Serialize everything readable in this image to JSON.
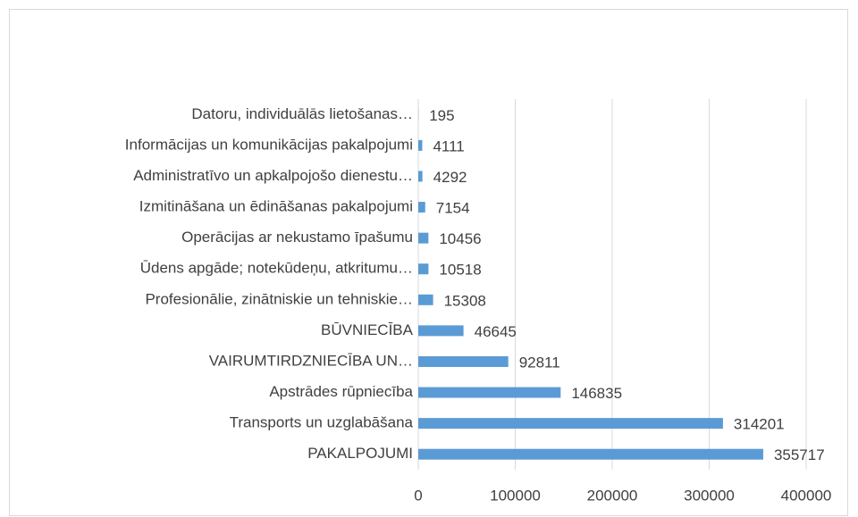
{
  "chart_data": {
    "type": "bar",
    "orientation": "horizontal",
    "categories": [
      "Datoru, individuālās lietošanas…",
      "Informācijas un komunikācijas pakalpojumi",
      "Administratīvo un apkalpojošo dienestu…",
      "Izmitināšana un ēdināšanas pakalpojumi",
      "Operācijas ar nekustamo īpašumu",
      "Ūdens apgāde; notekūdeņu, atkritumu…",
      "Profesionālie, zinātniskie un tehniskie…",
      "BŪVNIECĪBA",
      "VAIRUMTIRDZNIECĪBA UN…",
      "Apstrādes rūpniecība",
      "Transports un uzglabāšana",
      "PAKALPOJUMI"
    ],
    "values": [
      195,
      4111,
      4292,
      7154,
      10456,
      10518,
      15308,
      46645,
      92811,
      146835,
      314201,
      355717
    ],
    "color": "#5b9bd5",
    "xlim": [
      0,
      400000
    ],
    "xticks": [
      0,
      100000,
      200000,
      300000,
      400000
    ],
    "grid": true
  }
}
